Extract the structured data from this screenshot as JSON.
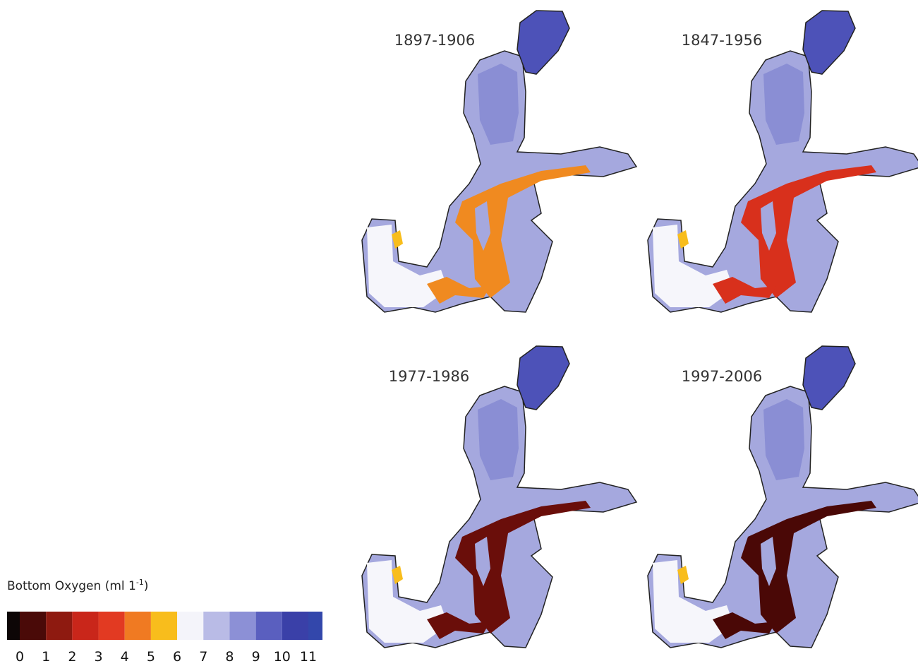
{
  "panels": [
    {
      "title": "1897-1906"
    },
    {
      "title": "1847-1956"
    },
    {
      "title": "1977-1986"
    },
    {
      "title": "1997-2006"
    }
  ],
  "legend": {
    "title": "Bottom Oxygen (ml 1",
    "title_superscript": "-1",
    "title_end": ")",
    "ticks": [
      0,
      1,
      2,
      3,
      4,
      5,
      6,
      7,
      8,
      9,
      10,
      11
    ],
    "colors": [
      "#0d0606",
      "#4a0a08",
      "#8e1a10",
      "#c9261a",
      "#e23a22",
      "#f07a22",
      "#f8bd1c",
      "#f4f4fa",
      "#b9bbe6",
      "#8c90d6",
      "#5a5fbf",
      "#3a40a8",
      "#3347ab"
    ]
  }
}
